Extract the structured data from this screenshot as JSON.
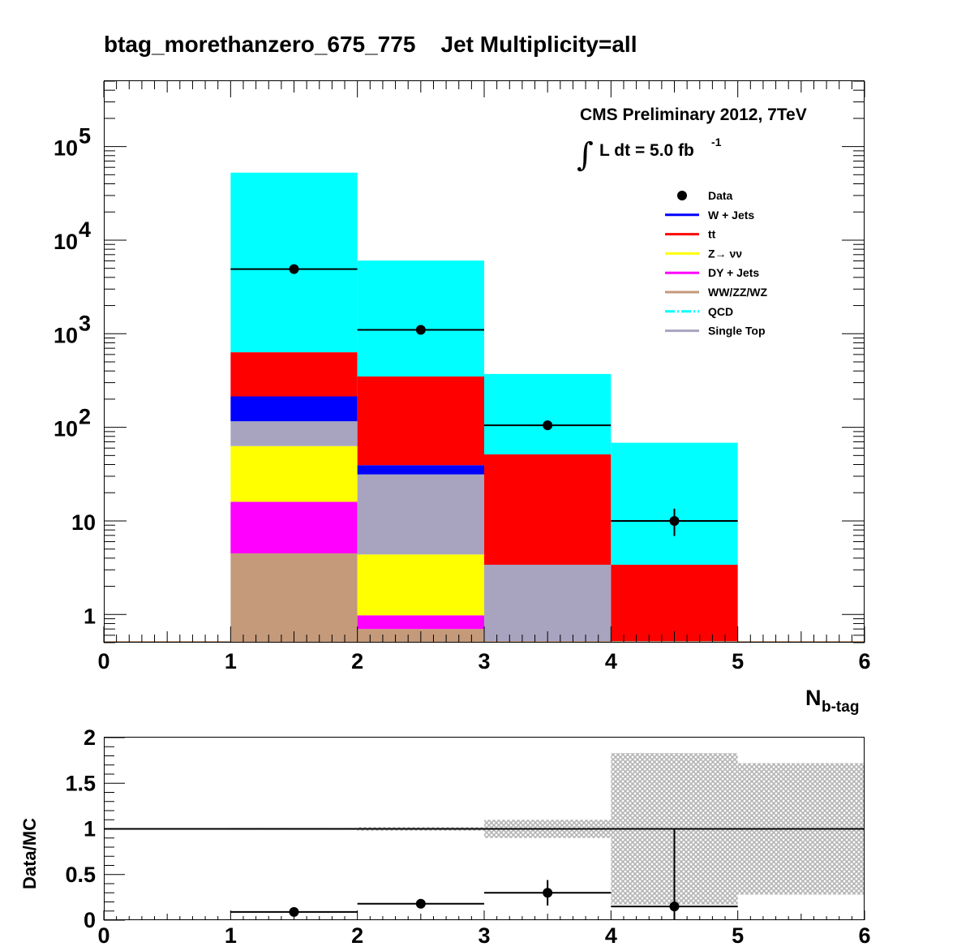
{
  "chart_data": [
    {
      "type": "bar",
      "stacked": true,
      "yscale": "log",
      "title": "btag_morethanzero_675_775    Jet Multiplicity=all",
      "xlabel_main": "N",
      "xlabel_sub": "b-tag",
      "ylabel": "",
      "xlim": [
        0,
        6
      ],
      "ylim": [
        0.5,
        500000
      ],
      "x_ticks": [
        "0",
        "1",
        "2",
        "3",
        "4",
        "5",
        "6"
      ],
      "y_ticks": [
        {
          "value": 1,
          "base": "1",
          "exp": ""
        },
        {
          "value": 10,
          "base": "10",
          "exp": ""
        },
        {
          "value": 100,
          "base": "10",
          "exp": "2"
        },
        {
          "value": 1000,
          "base": "10",
          "exp": "3"
        },
        {
          "value": 10000,
          "base": "10",
          "exp": "4"
        },
        {
          "value": 100000,
          "base": "10",
          "exp": "5"
        }
      ],
      "bins": [
        [
          0,
          1
        ],
        [
          1,
          2
        ],
        [
          2,
          3
        ],
        [
          3,
          4
        ],
        [
          4,
          5
        ],
        [
          5,
          6
        ]
      ],
      "series": [
        {
          "name": "WW/ZZ/WZ",
          "color": "#c49a7b",
          "values": [
            0,
            4.5,
            0.7,
            0,
            0,
            0
          ]
        },
        {
          "name": "DY + Jets",
          "color": "#ff00ff",
          "values": [
            0,
            11.5,
            0.28,
            0,
            0,
            0
          ]
        },
        {
          "name": "Z→νν",
          "color": "#ffff00",
          "values": [
            0,
            47,
            3.4,
            0,
            0,
            0
          ]
        },
        {
          "name": "Single Top",
          "color": "#a8a4c0",
          "values": [
            0,
            53,
            27,
            3.4,
            0,
            0
          ]
        },
        {
          "name": "W + Jets",
          "color": "#0000ff",
          "values": [
            0,
            98,
            8,
            0,
            0,
            0
          ]
        },
        {
          "name": "tt̄",
          "color": "#ff0000",
          "values": [
            0,
            420,
            310,
            48,
            3.4,
            0
          ]
        },
        {
          "name": "QCD",
          "color": "#00ffff",
          "values": [
            0,
            52000,
            5700,
            320,
            65,
            0
          ]
        }
      ],
      "data_points": {
        "name": "Data",
        "x": [
          1.5,
          2.5,
          3.5,
          4.5
        ],
        "y": [
          4900,
          1100,
          105,
          10
        ],
        "yerr_low": [
          70,
          33,
          10,
          3.1
        ],
        "yerr_high": [
          70,
          33,
          10,
          3.5
        ]
      },
      "legend": [
        {
          "label": "Data",
          "kind": "marker",
          "color": "#000000"
        },
        {
          "label": "W + Jets",
          "kind": "line",
          "color": "#0000ff"
        },
        {
          "label": "tt",
          "label_bar": "̄",
          "kind": "line",
          "color": "#ff0000"
        },
        {
          "label": "Z→ νν",
          "kind": "line",
          "color": "#ffff00"
        },
        {
          "label": "DY + Jets",
          "kind": "line",
          "color": "#ff00ff"
        },
        {
          "label": "WW/ZZ/WZ",
          "kind": "line",
          "color": "#c49a7b"
        },
        {
          "label": "QCD",
          "kind": "dashline",
          "color": "#00ffff"
        },
        {
          "label": "Single Top",
          "kind": "line",
          "color": "#a8a4c0"
        }
      ],
      "annotations": {
        "experiment": "CMS Preliminary 2012, 7TeV",
        "lumi_prefix": "L dt = 5.0 fb",
        "lumi_exp": "-1",
        "integral": "∫"
      }
    },
    {
      "type": "scatter",
      "ylabel": "Data/MC",
      "xlim": [
        0,
        6
      ],
      "ylim": [
        0,
        2
      ],
      "x_ticks": [
        "0",
        "1",
        "2",
        "3",
        "4",
        "5",
        "6"
      ],
      "y_ticks": [
        {
          "value": 0,
          "label": "0"
        },
        {
          "value": 0.5,
          "label": "0.5"
        },
        {
          "value": 1,
          "label": "1"
        },
        {
          "value": 1.5,
          "label": "1.5"
        },
        {
          "value": 2,
          "label": "2"
        }
      ],
      "reference_line": 1,
      "uncertainty_bands": [
        {
          "x0": 1,
          "x1": 2,
          "low": 0.99,
          "high": 1.01
        },
        {
          "x0": 2,
          "x1": 3,
          "low": 0.98,
          "high": 1.02
        },
        {
          "x0": 3,
          "x1": 4,
          "low": 0.9,
          "high": 1.1
        },
        {
          "x0": 4,
          "x1": 5,
          "low": 0.17,
          "high": 1.83
        },
        {
          "x0": 5,
          "x1": 6,
          "low": 0.28,
          "high": 1.72
        }
      ],
      "points": {
        "x": [
          1.5,
          2.5,
          3.5,
          4.5
        ],
        "y": [
          0.09,
          0.18,
          0.3,
          0.15
        ],
        "yerr": [
          0.005,
          0.01,
          0.14,
          0.85
        ],
        "xerr": [
          0.5,
          0.5,
          0.5,
          0.5
        ]
      }
    }
  ]
}
